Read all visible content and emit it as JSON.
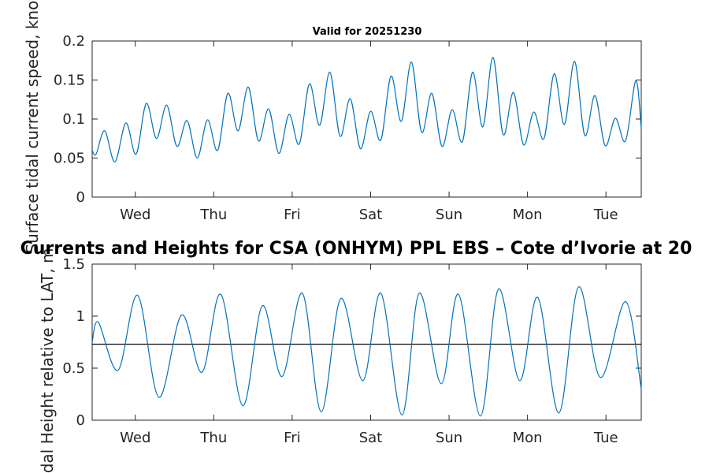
{
  "chart_data": [
    {
      "type": "line",
      "title": "Valid for 20251230",
      "xlabel": "",
      "ylabel": "Surface tidal current speed, knots",
      "ylim": [
        0,
        0.2
      ],
      "yticks": [
        0,
        0.05,
        0.1,
        0.15,
        0.2
      ],
      "ytick_labels": [
        "0",
        "0.05",
        "0.1",
        "0.15",
        "0.2"
      ],
      "xlim_days": [
        0,
        7
      ],
      "xticks_days": [
        0.55,
        1.55,
        2.55,
        3.55,
        4.55,
        5.55,
        6.55
      ],
      "xtick_labels": [
        "Wed",
        "Thu",
        "Fri",
        "Sat",
        "Sun",
        "Mon",
        "Tue"
      ],
      "series": [
        {
          "name": "Surface tidal current speed",
          "color": "#0072bd",
          "x_days": [
            0.0,
            0.05,
            0.16,
            0.29,
            0.43,
            0.56,
            0.69,
            0.82,
            0.95,
            1.08,
            1.21,
            1.34,
            1.47,
            1.6,
            1.73,
            1.86,
            1.99,
            2.12,
            2.25,
            2.38,
            2.51,
            2.64,
            2.77,
            2.9,
            3.03,
            3.16,
            3.29,
            3.42,
            3.55,
            3.68,
            3.81,
            3.94,
            4.07,
            4.2,
            4.33,
            4.46,
            4.59,
            4.72,
            4.85,
            4.98,
            5.11,
            5.24,
            5.37,
            5.5,
            5.63,
            5.76,
            5.89,
            6.02,
            6.15,
            6.28,
            6.41,
            6.54,
            6.67,
            6.8,
            6.93,
            7.0
          ],
          "values": [
            0.06,
            0.055,
            0.085,
            0.045,
            0.095,
            0.055,
            0.12,
            0.075,
            0.118,
            0.065,
            0.098,
            0.05,
            0.099,
            0.06,
            0.133,
            0.085,
            0.141,
            0.072,
            0.113,
            0.056,
            0.106,
            0.068,
            0.145,
            0.092,
            0.16,
            0.078,
            0.126,
            0.062,
            0.11,
            0.073,
            0.155,
            0.097,
            0.173,
            0.083,
            0.133,
            0.065,
            0.112,
            0.071,
            0.16,
            0.09,
            0.179,
            0.08,
            0.134,
            0.067,
            0.109,
            0.075,
            0.158,
            0.093,
            0.174,
            0.079,
            0.13,
            0.066,
            0.101,
            0.072,
            0.149,
            0.088
          ]
        }
      ]
    },
    {
      "type": "line",
      "title": "Currents and Heights for CSA (ONHYM) PPL EBS  – Cote d’Ivorie at 20",
      "xlabel": "",
      "ylabel": "Tidal Height relative to LAT, m",
      "ylim": [
        0,
        1.5
      ],
      "yticks": [
        0,
        0.5,
        1,
        1.5
      ],
      "ytick_labels": [
        "0",
        "0.5",
        "1",
        "1.5"
      ],
      "xlim_days": [
        0,
        7
      ],
      "xticks_days": [
        0.55,
        1.55,
        2.55,
        3.55,
        4.55,
        5.55,
        6.55
      ],
      "xtick_labels": [
        "Wed",
        "Thu",
        "Fri",
        "Sat",
        "Sun",
        "Mon",
        "Tue"
      ],
      "reference_line": 0.73,
      "series": [
        {
          "name": "Tidal height",
          "color": "#0072bd",
          "x_days": [
            0.0,
            0.08,
            0.33,
            0.58,
            0.85,
            1.14,
            1.4,
            1.64,
            1.92,
            2.17,
            2.42,
            2.68,
            2.92,
            3.17,
            3.45,
            3.68,
            3.95,
            4.17,
            4.45,
            4.67,
            4.95,
            5.18,
            5.45,
            5.68,
            5.95,
            6.2,
            6.48,
            6.8,
            7.0
          ],
          "values": [
            0.75,
            0.94,
            0.48,
            1.2,
            0.22,
            1.01,
            0.46,
            1.21,
            0.14,
            1.1,
            0.42,
            1.22,
            0.08,
            1.17,
            0.38,
            1.22,
            0.05,
            1.22,
            0.35,
            1.21,
            0.04,
            1.26,
            0.38,
            1.18,
            0.07,
            1.28,
            0.41,
            1.14,
            0.3
          ]
        }
      ]
    }
  ]
}
